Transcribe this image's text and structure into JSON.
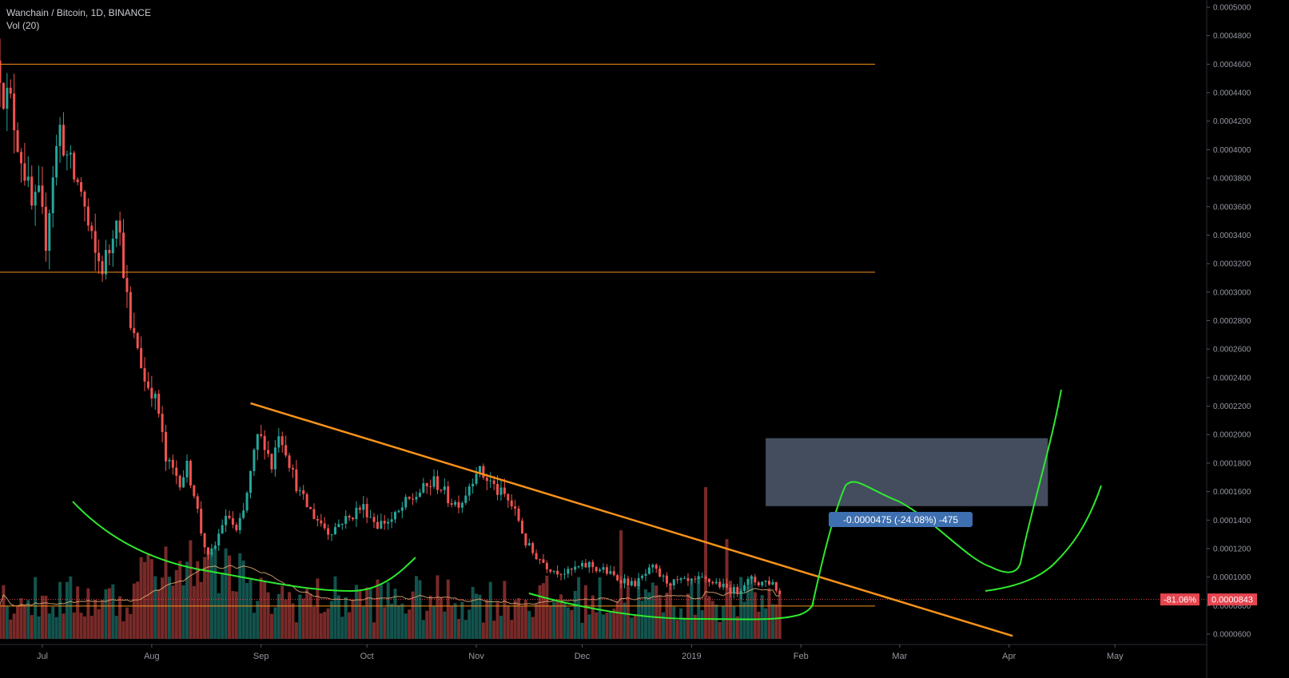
{
  "header": {
    "symbol_line": "Wanchain / Bitcoin, 1D, BINANCE",
    "indicator_line": "Vol (20)"
  },
  "chart_data": {
    "type": "candlestick",
    "title": "Wanchain / Bitcoin, 1D, BINANCE",
    "indicator": "Vol (20)",
    "ylim": [
      5e-05,
      0.0005
    ],
    "yticks": [
      "0.0000600",
      "0.0000800",
      "0.0001000",
      "0.0001200",
      "0.0001400",
      "0.0001600",
      "0.0001800",
      "0.0002000",
      "0.0002200",
      "0.0002400",
      "0.0002600",
      "0.0002800",
      "0.0003000",
      "0.0003200",
      "0.0003400",
      "0.0003600",
      "0.0003800",
      "0.0004000",
      "0.0004200",
      "0.0004400",
      "0.0004600",
      "0.0004800",
      "0.0005000"
    ],
    "xticks": [
      {
        "label": "Jul",
        "date": "2018-07-01"
      },
      {
        "label": "Aug",
        "date": "2018-08-01"
      },
      {
        "label": "Sep",
        "date": "2018-09-01"
      },
      {
        "label": "Oct",
        "date": "2018-10-01"
      },
      {
        "label": "Nov",
        "date": "2018-11-01"
      },
      {
        "label": "Dec",
        "date": "2018-12-01"
      },
      {
        "label": "2019",
        "date": "2019-01-01"
      },
      {
        "label": "Feb",
        "date": "2019-02-01"
      },
      {
        "label": "Mar",
        "date": "2019-03-01"
      },
      {
        "label": "Apr",
        "date": "2019-04-01"
      },
      {
        "label": "May",
        "date": "2019-05-01"
      }
    ],
    "xrange": [
      "2018-06-19",
      "2019-05-27"
    ],
    "close_path": [
      [
        "2018-06-19",
        0.000458
      ],
      [
        "2018-06-20",
        0.000441
      ],
      [
        "2018-06-22",
        0.000432
      ],
      [
        "2018-06-24",
        0.000407
      ],
      [
        "2018-06-26",
        0.000385
      ],
      [
        "2018-06-28",
        0.000358
      ],
      [
        "2018-06-30",
        0.000365
      ],
      [
        "2018-07-02",
        0.000337
      ],
      [
        "2018-07-04",
        0.000385
      ],
      [
        "2018-07-06",
        0.000415
      ],
      [
        "2018-07-08",
        0.000395
      ],
      [
        "2018-07-10",
        0.00038
      ],
      [
        "2018-07-12",
        0.000372
      ],
      [
        "2018-07-14",
        0.000345
      ],
      [
        "2018-07-16",
        0.000325
      ],
      [
        "2018-07-18",
        0.000318
      ],
      [
        "2018-07-20",
        0.00033
      ],
      [
        "2018-07-22",
        0.00036
      ],
      [
        "2018-07-24",
        0.000318
      ],
      [
        "2018-07-26",
        0.000272
      ],
      [
        "2018-07-28",
        0.000262
      ],
      [
        "2018-07-30",
        0.000238
      ],
      [
        "2018-08-01",
        0.000232
      ],
      [
        "2018-08-03",
        0.000215
      ],
      [
        "2018-08-05",
        0.000181
      ],
      [
        "2018-08-07",
        0.000175
      ],
      [
        "2018-08-09",
        0.000168
      ],
      [
        "2018-08-11",
        0.000177
      ],
      [
        "2018-08-13",
        0.00016
      ],
      [
        "2018-08-15",
        0.000132
      ],
      [
        "2018-08-17",
        0.000113
      ],
      [
        "2018-08-19",
        0.000122
      ],
      [
        "2018-08-21",
        0.000138
      ],
      [
        "2018-08-23",
        0.000142
      ],
      [
        "2018-08-25",
        0.000131
      ],
      [
        "2018-08-27",
        0.000145
      ],
      [
        "2018-08-29",
        0.000172
      ],
      [
        "2018-08-31",
        0.000198
      ],
      [
        "2018-09-02",
        0.000195
      ],
      [
        "2018-09-04",
        0.000178
      ],
      [
        "2018-09-06",
        0.000203
      ],
      [
        "2018-09-08",
        0.00019
      ],
      [
        "2018-09-10",
        0.000172
      ],
      [
        "2018-09-12",
        0.000158
      ],
      [
        "2018-09-14",
        0.00015
      ],
      [
        "2018-09-16",
        0.000143
      ],
      [
        "2018-09-18",
        0.000138
      ],
      [
        "2018-09-20",
        0.000132
      ],
      [
        "2018-09-22",
        0.000135
      ],
      [
        "2018-09-24",
        0.00014
      ],
      [
        "2018-09-26",
        0.000141
      ],
      [
        "2018-09-28",
        0.000147
      ],
      [
        "2018-09-30",
        0.000149
      ],
      [
        "2018-10-02",
        0.000143
      ],
      [
        "2018-10-04",
        0.000137
      ],
      [
        "2018-10-06",
        0.000139
      ],
      [
        "2018-10-08",
        0.00014
      ],
      [
        "2018-10-10",
        0.000145
      ],
      [
        "2018-10-12",
        0.000152
      ],
      [
        "2018-10-14",
        0.000155
      ],
      [
        "2018-10-16",
        0.00016
      ],
      [
        "2018-10-18",
        0.000163
      ],
      [
        "2018-10-20",
        0.000167
      ],
      [
        "2018-10-22",
        0.000163
      ],
      [
        "2018-10-24",
        0.000155
      ],
      [
        "2018-10-26",
        0.000152
      ],
      [
        "2018-10-28",
        0.000154
      ],
      [
        "2018-10-30",
        0.000165
      ],
      [
        "2018-11-01",
        0.000176
      ],
      [
        "2018-11-03",
        0.000171
      ],
      [
        "2018-11-05",
        0.000167
      ],
      [
        "2018-11-07",
        0.00016
      ],
      [
        "2018-11-09",
        0.000157
      ],
      [
        "2018-11-11",
        0.00015
      ],
      [
        "2018-11-13",
        0.00014
      ],
      [
        "2018-11-15",
        0.000124
      ],
      [
        "2018-11-17",
        0.000117
      ],
      [
        "2018-11-19",
        0.000113
      ],
      [
        "2018-11-21",
        0.000108
      ],
      [
        "2018-11-23",
        0.000105
      ],
      [
        "2018-11-25",
        0.000104
      ],
      [
        "2018-11-27",
        0.000103
      ],
      [
        "2018-11-29",
        0.000106
      ],
      [
        "2018-12-01",
        0.000107
      ],
      [
        "2018-12-03",
        0.000109
      ],
      [
        "2018-12-05",
        0.000106
      ],
      [
        "2018-12-07",
        0.000105
      ],
      [
        "2018-12-09",
        0.000102
      ],
      [
        "2018-12-11",
        9.9e-05
      ],
      [
        "2018-12-13",
        9.8e-05
      ],
      [
        "2018-12-15",
        9.5e-05
      ],
      [
        "2018-12-17",
        9.7e-05
      ],
      [
        "2018-12-19",
        0.000102
      ],
      [
        "2018-12-21",
        0.000106
      ],
      [
        "2018-12-23",
        0.000101
      ],
      [
        "2018-12-25",
        9.7e-05
      ],
      [
        "2018-12-27",
        9.6e-05
      ],
      [
        "2018-12-29",
        9.7e-05
      ],
      [
        "2018-12-31",
        9.6e-05
      ],
      [
        "2019-01-02",
        9.7e-05
      ],
      [
        "2019-01-04",
        9.8e-05
      ],
      [
        "2019-01-06",
        9.7e-05
      ],
      [
        "2019-01-08",
        9.6e-05
      ],
      [
        "2019-01-10",
        9.3e-05
      ],
      [
        "2019-01-12",
        9.1e-05
      ],
      [
        "2019-01-14",
        9e-05
      ],
      [
        "2019-01-16",
        9.6e-05
      ],
      [
        "2019-01-18",
        9.8e-05
      ],
      [
        "2019-01-20",
        9.6e-05
      ],
      [
        "2019-01-22",
        9.7e-05
      ],
      [
        "2019-01-24",
        9.6e-05
      ],
      [
        "2019-01-26",
        8.8e-05
      ]
    ],
    "overlays": {
      "horizontal_lines": [
        0.00046,
        0.000314
      ],
      "current_price_line": 8.43e-05,
      "support_line": 7.97e-05,
      "trendline": {
        "from": [
          "2018-08-29",
          0.000222
        ],
        "to": [
          "2019-04-02",
          5.87e-05
        ]
      },
      "measure_box": {
        "from": [
          "2019-01-22",
          0.0001975
        ],
        "to": [
          "2019-04-12",
          0.0001498
        ]
      }
    },
    "colors": {
      "up": "#26a69a",
      "down": "#ef5350",
      "orange": "#f7931a",
      "green_drawing": "#2ee82e",
      "tag": "#e5454f",
      "measure_label_bg": "#3e6fb0",
      "measure_box": "#4a5568"
    }
  },
  "price_tag": {
    "percent": "-81.06%",
    "price": "0.0000843"
  },
  "measure_label": "-0.0000475 (-24.08%) -475"
}
